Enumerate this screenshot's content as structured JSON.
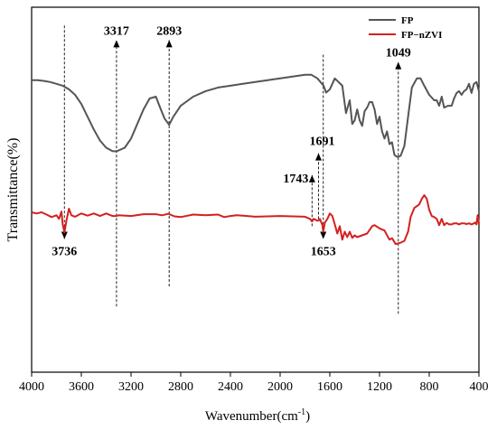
{
  "chart_data": {
    "type": "line",
    "title": "",
    "xlabel": "Wavenumber(cm",
    "xlabel_superscript": "-1",
    "xlabel_suffix": ")",
    "ylabel": "Transmittance(%)",
    "xlim": [
      4000,
      400
    ],
    "x_reversed": true,
    "ylim": [
      0,
      100
    ],
    "y_ticks_shown": false,
    "grid": false,
    "legend_position": "top-right",
    "x_ticks": [
      4000,
      3600,
      3200,
      2800,
      2400,
      2000,
      1600,
      1200,
      800,
      400
    ],
    "x_tick_labels": [
      "4000",
      "3600",
      "3200",
      "2800",
      "2400",
      "2000",
      "1600",
      "1200",
      "800",
      "400"
    ],
    "series": [
      {
        "name": "FP",
        "color": "#555555",
        "x": [
          4000,
          3950,
          3900,
          3850,
          3800,
          3750,
          3700,
          3650,
          3600,
          3550,
          3500,
          3450,
          3400,
          3350,
          3317,
          3250,
          3200,
          3150,
          3100,
          3050,
          3000,
          2960,
          2930,
          2893,
          2860,
          2800,
          2700,
          2600,
          2500,
          2400,
          2300,
          2200,
          2100,
          2000,
          1900,
          1800,
          1750,
          1700,
          1650,
          1630,
          1600,
          1560,
          1500,
          1470,
          1440,
          1420,
          1400,
          1380,
          1360,
          1340,
          1320,
          1300,
          1280,
          1260,
          1240,
          1220,
          1200,
          1180,
          1160,
          1140,
          1120,
          1100,
          1080,
          1060,
          1049,
          1030,
          1000,
          970,
          940,
          900,
          870,
          840,
          800,
          760,
          740,
          720,
          700,
          680,
          650,
          620,
          600,
          580,
          560,
          540,
          520,
          500,
          480,
          460,
          440,
          420,
          400
        ],
        "y": [
          80,
          80,
          79.8,
          79.5,
          79,
          78.5,
          77.5,
          76,
          73.5,
          70,
          66.5,
          63.5,
          61.5,
          60.6,
          60.5,
          61.5,
          64,
          68,
          72,
          75,
          75.5,
          72,
          69.5,
          67.8,
          70,
          73,
          75.5,
          77,
          78,
          78.5,
          79,
          79.5,
          80,
          80.5,
          81,
          81.5,
          81.5,
          80.5,
          78.5,
          76.6,
          77.5,
          80.5,
          78.5,
          71,
          74.5,
          68,
          69,
          72,
          69,
          67.5,
          71.5,
          72.5,
          74,
          74,
          72,
          68,
          70,
          66,
          64,
          66,
          62.5,
          63,
          59.5,
          59,
          59,
          59.3,
          62,
          70,
          78,
          80.5,
          80.5,
          78.5,
          76,
          74.5,
          74.5,
          73,
          75.5,
          72.5,
          73,
          73,
          75,
          76.5,
          77,
          76,
          77,
          77.5,
          79,
          76.5,
          79,
          79.5,
          77
        ]
      },
      {
        "name": "FP−nZVI",
        "color": "#d42020",
        "x": [
          4000,
          3960,
          3920,
          3880,
          3840,
          3800,
          3780,
          3760,
          3750,
          3736,
          3720,
          3700,
          3680,
          3650,
          3600,
          3550,
          3500,
          3450,
          3400,
          3350,
          3317,
          3300,
          3200,
          3100,
          3000,
          2950,
          2900,
          2850,
          2800,
          2700,
          2600,
          2500,
          2450,
          2400,
          2350,
          2300,
          2200,
          2100,
          2000,
          1900,
          1800,
          1760,
          1743,
          1730,
          1700,
          1691,
          1680,
          1660,
          1653,
          1640,
          1620,
          1600,
          1580,
          1560,
          1540,
          1520,
          1500,
          1480,
          1460,
          1440,
          1420,
          1400,
          1380,
          1340,
          1300,
          1260,
          1240,
          1200,
          1160,
          1120,
          1100,
          1070,
          1049,
          1030,
          1000,
          970,
          950,
          920,
          900,
          880,
          860,
          840,
          820,
          800,
          780,
          760,
          740,
          720,
          700,
          680,
          660,
          640,
          620,
          600,
          580,
          560,
          540,
          520,
          500,
          480,
          460,
          440,
          430,
          420,
          410,
          400
        ],
        "y": [
          43.8,
          43.5,
          43.8,
          43.2,
          42.5,
          43,
          42,
          44,
          40.5,
          38.3,
          41.5,
          44.8,
          43,
          42.6,
          43.5,
          42.9,
          43.5,
          42.8,
          43.5,
          42.8,
          42.8,
          43,
          42.8,
          43.3,
          43.3,
          43,
          43.4,
          42.7,
          42.5,
          43.2,
          43,
          43.2,
          42.5,
          42.8,
          43,
          42.9,
          42.6,
          42.7,
          42.8,
          42.7,
          42.6,
          42,
          41.3,
          42,
          41.5,
          41.5,
          42,
          40.3,
          38.5,
          41,
          42,
          43.5,
          42.8,
          40.5,
          38,
          40,
          36.3,
          38.5,
          37,
          38.5,
          36.8,
          37.5,
          37,
          37.5,
          38,
          40,
          40.3,
          39.4,
          38.8,
          36.3,
          36.7,
          35.1,
          35.3,
          35.5,
          36,
          38.5,
          42.5,
          45,
          45.5,
          46,
          47.5,
          48.5,
          47.5,
          44.5,
          42.8,
          42.5,
          42,
          40.3,
          42,
          40.3,
          40.9,
          40.5,
          40.5,
          40.8,
          40.8,
          40.5,
          40.8,
          40.8,
          40.6,
          40.8,
          40.5,
          40.8,
          41,
          40.5,
          43,
          40.6
        ]
      }
    ],
    "annotations": [
      {
        "label": "3317",
        "x": 3317,
        "arrow": "up",
        "y_from": 18,
        "y_to": 91
      },
      {
        "label": "2893",
        "x": 2893,
        "arrow": "up",
        "y_from": 23.5,
        "y_to": 91
      },
      {
        "label": "1049",
        "x": 1049,
        "arrow": "up",
        "y_from": 16,
        "y_to": 85
      },
      {
        "label": "3736",
        "x": 3736,
        "arrow": "down",
        "y_from": 95,
        "y_to": 36.5
      },
      {
        "label": "1743",
        "x": 1743,
        "arrow": "up",
        "y_from": 40,
        "y_to": 54
      },
      {
        "label": "1691",
        "x": 1691,
        "arrow": "up",
        "y_from": 42,
        "y_to": 60
      },
      {
        "label": "1653",
        "x": 1653,
        "arrow": "down",
        "y_from": 87,
        "y_to": 36.5
      }
    ]
  }
}
